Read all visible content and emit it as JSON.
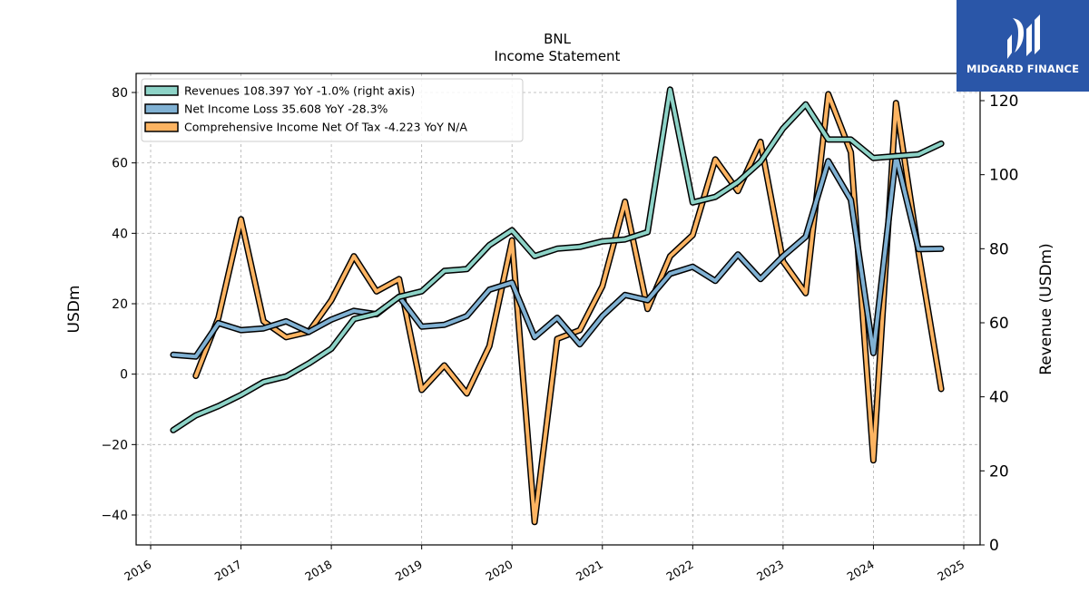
{
  "chart_data": {
    "type": "line",
    "title": "BNL",
    "subtitle": "Income Statement",
    "ylabel": "USDm",
    "y2label": "Revenue (USDm)",
    "ylim": [
      -48,
      85
    ],
    "y2lim": [
      0,
      125
    ],
    "xlim": [
      2015.83,
      2025.25
    ],
    "yticks": [
      -40,
      -20,
      0,
      20,
      40,
      60,
      80
    ],
    "y2ticks": [
      0,
      20,
      40,
      60,
      80,
      100,
      120
    ],
    "xticks": [
      2016,
      2017,
      2018,
      2019,
      2020,
      2021,
      2022,
      2023,
      2024,
      2025
    ],
    "grid": true,
    "legend_position": "top-left",
    "series": [
      {
        "name": "Revenues",
        "legend": "Revenues  108.397 YoY -1.0% (right axis)",
        "axis": "right",
        "color": "#8dd3c7",
        "x": [
          2016.25,
          2016.5,
          2016.75,
          2017.0,
          2017.25,
          2017.5,
          2017.75,
          2018.0,
          2018.25,
          2018.5,
          2018.75,
          2019.0,
          2019.25,
          2019.5,
          2019.75,
          2020.0,
          2020.25,
          2020.5,
          2020.75,
          2021.0,
          2021.25,
          2021.5,
          2021.75,
          2022.0,
          2022.25,
          2022.5,
          2022.75,
          2023.0,
          2023.25,
          2023.5,
          2023.75,
          2024.0,
          2024.25,
          2024.5,
          2024.75
        ],
        "values": [
          31,
          35,
          37.5,
          40.5,
          44,
          45.5,
          49,
          53,
          61,
          62.5,
          67,
          68.5,
          74,
          74.5,
          81,
          85,
          78,
          80,
          80.5,
          82,
          82.5,
          84.5,
          123,
          92.5,
          94,
          98,
          103.5,
          112.5,
          119,
          109.5,
          109.5,
          104.5,
          105,
          105.5,
          108.4
        ]
      },
      {
        "name": "Net Income Loss",
        "legend": "Net Income Loss  35.608 YoY -28.3%",
        "axis": "left",
        "color": "#80b1d3",
        "x": [
          2016.25,
          2016.5,
          2016.75,
          2017.0,
          2017.25,
          2017.5,
          2017.75,
          2018.0,
          2018.25,
          2018.5,
          2018.75,
          2019.0,
          2019.25,
          2019.5,
          2019.75,
          2020.0,
          2020.25,
          2020.5,
          2020.75,
          2021.0,
          2021.25,
          2021.5,
          2021.75,
          2022.0,
          2022.25,
          2022.5,
          2022.75,
          2023.0,
          2023.25,
          2023.5,
          2023.75,
          2024.0,
          2024.25,
          2024.5,
          2024.75
        ],
        "values": [
          5.5,
          5,
          14.5,
          12.5,
          13,
          15,
          12,
          15.5,
          18,
          17,
          22,
          13.5,
          14,
          16.5,
          24,
          26,
          10.5,
          16,
          8.5,
          16.5,
          22.5,
          21,
          28.5,
          30.5,
          26.5,
          34,
          27,
          33.5,
          39,
          60.5,
          49.5,
          6,
          62,
          35.5,
          35.6
        ]
      },
      {
        "name": "Comprehensive Income Net Of Tax",
        "legend": "Comprehensive Income Net Of Tax  -4.223 YoY N/A",
        "axis": "left",
        "color": "#fdb462",
        "x": [
          2016.5,
          2016.75,
          2017.0,
          2017.25,
          2017.5,
          2017.75,
          2018.0,
          2018.25,
          2018.5,
          2018.75,
          2019.0,
          2019.25,
          2019.5,
          2019.75,
          2020.0,
          2020.25,
          2020.5,
          2020.75,
          2021.0,
          2021.25,
          2021.5,
          2021.75,
          2022.0,
          2022.25,
          2022.5,
          2022.75,
          2023.0,
          2023.25,
          2023.5,
          2023.75,
          2024.0,
          2024.25,
          2024.5,
          2024.75
        ],
        "values": [
          -0.5,
          16,
          44,
          15,
          10.5,
          12,
          21,
          33.5,
          23.5,
          27,
          -4.5,
          2.5,
          -5.5,
          8,
          38,
          -42,
          10,
          12.5,
          25,
          49,
          18.5,
          33.5,
          39.5,
          61,
          52,
          66,
          32,
          23,
          79.5,
          63,
          -24.5,
          77,
          34.5,
          -4.2
        ]
      }
    ]
  },
  "logo": {
    "text": "MIDGARD FINANCE"
  }
}
